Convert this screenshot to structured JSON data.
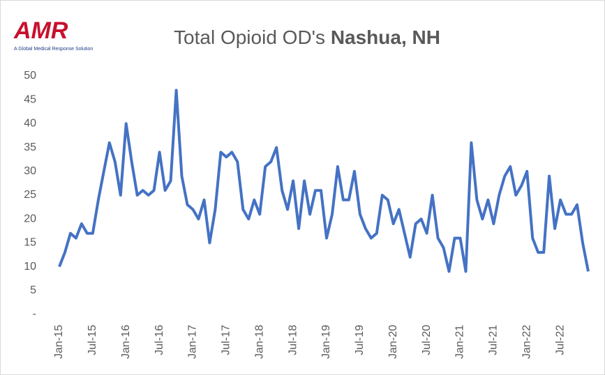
{
  "chart_data": {
    "type": "line",
    "logo": {
      "text": "AMR",
      "tagline": "A Global Medical Response Solution"
    },
    "title": "Total Opioid OD's",
    "title_bold": "Nashua, NH",
    "categories": [
      "Jan-15",
      null,
      null,
      null,
      null,
      null,
      "Jul-15",
      null,
      null,
      null,
      null,
      null,
      "Jan-16",
      null,
      null,
      null,
      null,
      null,
      "Jul-16",
      null,
      null,
      null,
      null,
      null,
      "Jan-17",
      null,
      null,
      null,
      null,
      null,
      "Jul-17",
      null,
      null,
      null,
      null,
      null,
      "Jan-18",
      null,
      null,
      null,
      null,
      null,
      "Jul-18",
      null,
      null,
      null,
      null,
      null,
      "Jan-19",
      null,
      null,
      null,
      null,
      null,
      "Jul-19",
      null,
      null,
      null,
      null,
      null,
      "Jan-20",
      null,
      null,
      null,
      null,
      null,
      "Jul-20",
      null,
      null,
      null,
      null,
      null,
      "Jan-21",
      null,
      null,
      null,
      null,
      null,
      "Jul-21",
      null,
      null,
      null,
      null,
      null,
      "Jan-22",
      null,
      null,
      null,
      null,
      null,
      "Jul-22",
      null,
      null,
      null,
      null,
      null
    ],
    "series": [
      {
        "name": "Total Opioid OD's",
        "color": "#4472c4",
        "values": [
          10,
          13,
          17,
          16,
          19,
          17,
          17,
          24,
          30,
          36,
          32,
          25,
          40,
          32,
          25,
          26,
          25,
          26,
          34,
          26,
          28,
          47,
          29,
          23,
          22,
          20,
          24,
          15,
          22,
          34,
          33,
          34,
          32,
          22,
          20,
          24,
          21,
          31,
          32,
          35,
          26,
          22,
          28,
          18,
          28,
          21,
          26,
          26,
          16,
          21,
          31,
          24,
          24,
          30,
          21,
          18,
          16,
          17,
          25,
          24,
          19,
          22,
          17,
          12,
          19,
          20,
          17,
          25,
          16,
          14,
          9,
          16,
          16,
          9,
          36,
          24,
          20,
          24,
          19,
          25,
          29,
          31,
          25,
          27,
          30,
          16,
          13,
          13,
          29,
          18,
          24,
          21,
          21,
          23,
          15,
          9
        ]
      }
    ],
    "ylim": [
      0,
      50
    ],
    "yticks": [
      {
        "value": 0,
        "label": "-"
      },
      5,
      10,
      15,
      20,
      25,
      30,
      35,
      40,
      45,
      50
    ],
    "grid": false
  }
}
